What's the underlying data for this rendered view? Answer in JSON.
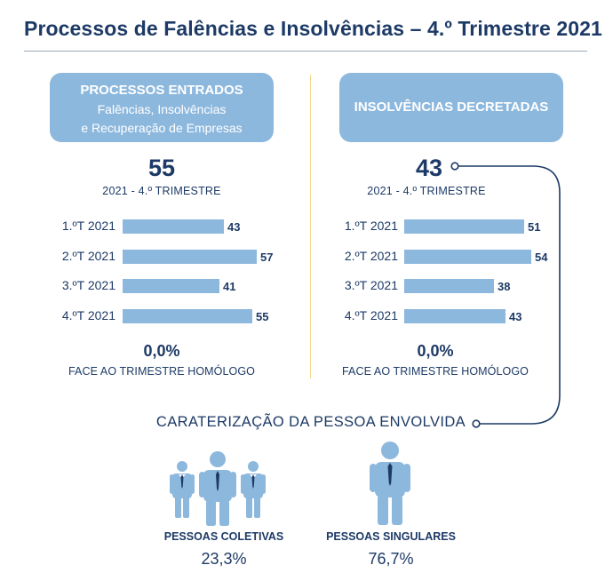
{
  "title": "Processos de Falências e Insolvências – 4.º Trimestre 2021",
  "left_panel": {
    "header_title": "PROCESSOS ENTRADOS",
    "header_sub_1": "Falências, Insolvências",
    "header_sub_2": "e Recuperação de Empresas",
    "total": "55",
    "period": "2021 - 4.º TRIMESTRE",
    "change": "0,0%",
    "change_label": "FACE AO TRIMESTRE HOMÓLOGO"
  },
  "right_panel": {
    "header_title": "INSOLVÊNCIAS DECRETADAS",
    "total": "43",
    "period": "2021 - 4.º TRIMESTRE",
    "change": "0,0%",
    "change_label": "FACE AO TRIMESTRE HOMÓLOGO"
  },
  "chart_data": [
    {
      "type": "bar",
      "title": "PROCESSOS ENTRADOS",
      "categories": [
        "1.ºT 2021",
        "2.ºT 2021",
        "3.ºT 2021",
        "4.ºT 2021"
      ],
      "values": [
        43,
        57,
        41,
        55
      ],
      "orientation": "horizontal"
    },
    {
      "type": "bar",
      "title": "INSOLVÊNCIAS DECRETADAS",
      "categories": [
        "1.ºT 2021",
        "2.ºT 2021",
        "3.ºT 2021",
        "4.ºT 2021"
      ],
      "values": [
        51,
        54,
        38,
        43
      ],
      "orientation": "horizontal"
    }
  ],
  "characterization": {
    "title": "CARATERIZAÇÃO DA PESSOA ENVOLVIDA",
    "colectivas_label": "PESSOAS COLETIVAS",
    "colectivas_value": "23,3%",
    "singulares_label": "PESSOAS SINGULARES",
    "singulares_value": "76,7%"
  },
  "colors": {
    "navy": "#1d3a66",
    "bar_blue": "#8db8dd",
    "divider_yellow": "#f0d98c"
  }
}
